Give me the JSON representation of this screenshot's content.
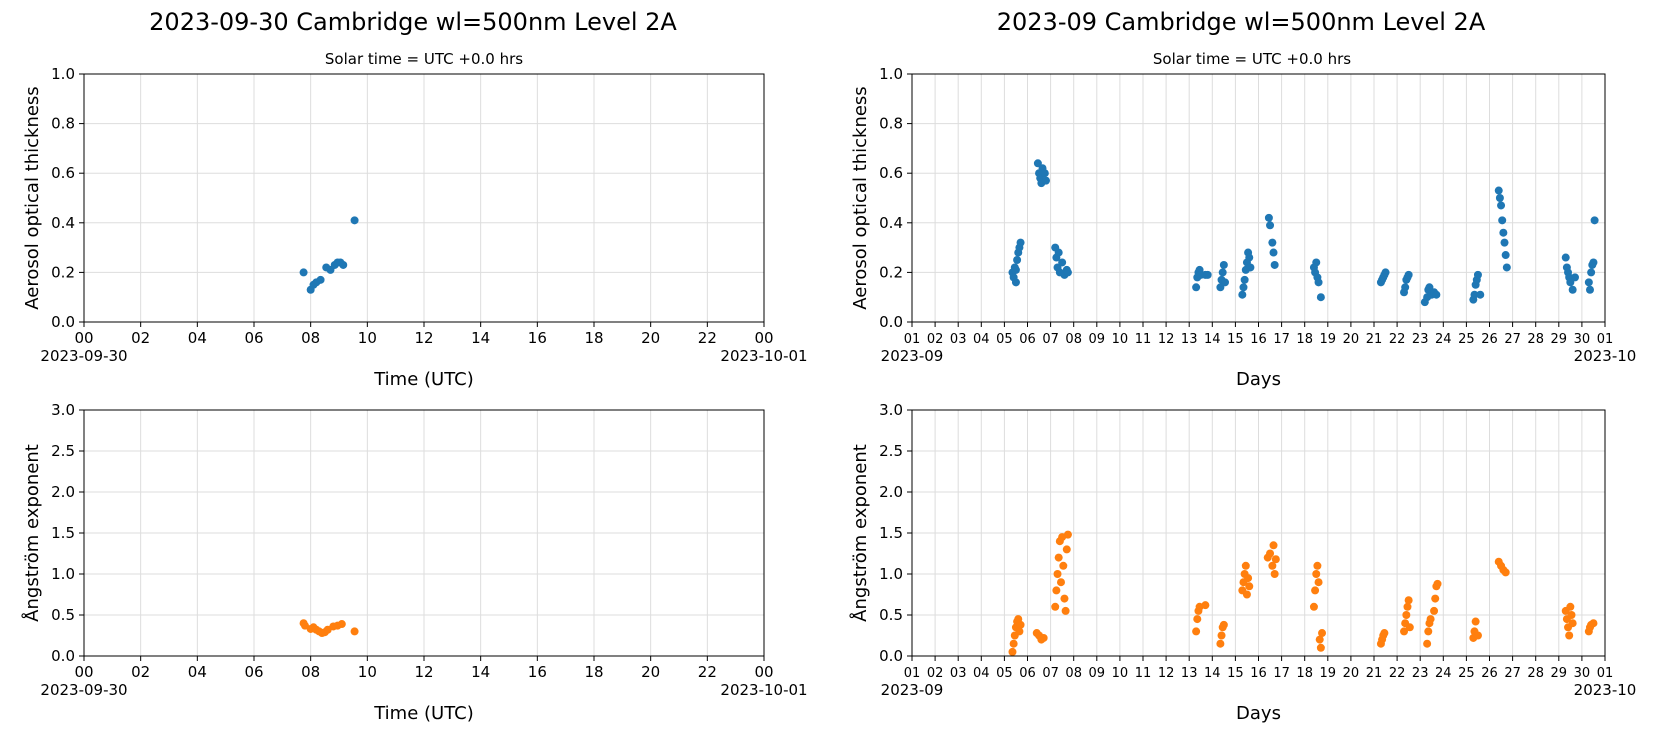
{
  "figure": {
    "left_title": "2023-09-30  Cambridge  wl=500nm  Level 2A",
    "right_title": "2023-09  Cambridge  wl=500nm  Level 2A",
    "left_subtitle": "Solar time = UTC +0.0 hrs",
    "right_subtitle": "Solar time = UTC +0.0 hrs"
  },
  "colors": {
    "aot": "#1f77b4",
    "angstrom": "#ff7f0e",
    "grid": "#dddddd"
  },
  "chart_data": [
    {
      "id": "day-aot",
      "type": "scatter",
      "xlabel": "Time (UTC)",
      "ylabel": "Aerosol optical thickness",
      "xlim": [
        0,
        24
      ],
      "ylim": [
        0,
        1.0
      ],
      "xticks": [
        "00",
        "02",
        "04",
        "06",
        "08",
        "10",
        "12",
        "14",
        "16",
        "18",
        "20",
        "22",
        "00"
      ],
      "yticks": [
        "0.0",
        "0.2",
        "0.4",
        "0.6",
        "0.8",
        "1.0"
      ],
      "x_date_start": "2023-09-30",
      "x_date_end": "2023-10-01",
      "grid": true,
      "series": [
        {
          "color": "#1f77b4",
          "points": [
            [
              7.75,
              0.2
            ],
            [
              8.0,
              0.13
            ],
            [
              8.1,
              0.15
            ],
            [
              8.2,
              0.16
            ],
            [
              8.35,
              0.17
            ],
            [
              8.55,
              0.22
            ],
            [
              8.7,
              0.21
            ],
            [
              8.85,
              0.23
            ],
            [
              8.95,
              0.24
            ],
            [
              9.05,
              0.24
            ],
            [
              9.15,
              0.23
            ],
            [
              9.55,
              0.41
            ]
          ]
        }
      ]
    },
    {
      "id": "month-aot",
      "type": "scatter",
      "xlabel": "Days",
      "ylabel": "Aerosol optical thickness",
      "xlim": [
        1,
        31
      ],
      "ylim": [
        0,
        1.0
      ],
      "xticks": [
        "01",
        "02",
        "03",
        "04",
        "05",
        "06",
        "07",
        "08",
        "09",
        "10",
        "11",
        "12",
        "13",
        "14",
        "15",
        "16",
        "17",
        "18",
        "19",
        "20",
        "21",
        "22",
        "23",
        "24",
        "25",
        "26",
        "27",
        "28",
        "29",
        "30",
        "01"
      ],
      "yticks": [
        "0.0",
        "0.2",
        "0.4",
        "0.6",
        "0.8",
        "1.0"
      ],
      "x_date_start": "2023-09",
      "x_date_end": "2023-10",
      "grid": true,
      "series": [
        {
          "color": "#1f77b4",
          "points": [
            [
              5.35,
              0.2
            ],
            [
              5.4,
              0.18
            ],
            [
              5.45,
              0.22
            ],
            [
              5.5,
              0.16
            ],
            [
              5.55,
              0.25
            ],
            [
              5.6,
              0.28
            ],
            [
              5.65,
              0.3
            ],
            [
              5.7,
              0.32
            ],
            [
              5.5,
              0.21
            ],
            [
              6.45,
              0.64
            ],
            [
              6.5,
              0.6
            ],
            [
              6.55,
              0.58
            ],
            [
              6.6,
              0.56
            ],
            [
              6.65,
              0.62
            ],
            [
              6.75,
              0.6
            ],
            [
              6.8,
              0.57
            ],
            [
              7.2,
              0.3
            ],
            [
              7.25,
              0.26
            ],
            [
              7.3,
              0.22
            ],
            [
              7.35,
              0.28
            ],
            [
              7.4,
              0.2
            ],
            [
              7.5,
              0.24
            ],
            [
              7.6,
              0.19
            ],
            [
              7.7,
              0.21
            ],
            [
              7.75,
              0.2
            ],
            [
              13.3,
              0.14
            ],
            [
              13.35,
              0.18
            ],
            [
              13.4,
              0.2
            ],
            [
              13.45,
              0.21
            ],
            [
              13.5,
              0.19
            ],
            [
              13.7,
              0.19
            ],
            [
              13.8,
              0.19
            ],
            [
              14.35,
              0.14
            ],
            [
              14.4,
              0.17
            ],
            [
              14.45,
              0.2
            ],
            [
              14.5,
              0.23
            ],
            [
              14.55,
              0.16
            ],
            [
              15.3,
              0.11
            ],
            [
              15.35,
              0.14
            ],
            [
              15.4,
              0.17
            ],
            [
              15.45,
              0.21
            ],
            [
              15.5,
              0.24
            ],
            [
              15.55,
              0.28
            ],
            [
              15.6,
              0.26
            ],
            [
              15.65,
              0.22
            ],
            [
              16.45,
              0.42
            ],
            [
              16.5,
              0.39
            ],
            [
              16.6,
              0.32
            ],
            [
              16.65,
              0.28
            ],
            [
              16.7,
              0.23
            ],
            [
              18.4,
              0.22
            ],
            [
              18.45,
              0.2
            ],
            [
              18.5,
              0.24
            ],
            [
              18.55,
              0.18
            ],
            [
              18.6,
              0.16
            ],
            [
              18.7,
              0.1
            ],
            [
              21.3,
              0.16
            ],
            [
              21.35,
              0.17
            ],
            [
              21.4,
              0.18
            ],
            [
              21.45,
              0.19
            ],
            [
              21.5,
              0.2
            ],
            [
              22.3,
              0.12
            ],
            [
              22.35,
              0.14
            ],
            [
              22.4,
              0.17
            ],
            [
              22.45,
              0.18
            ],
            [
              22.5,
              0.19
            ],
            [
              23.2,
              0.08
            ],
            [
              23.3,
              0.1
            ],
            [
              23.35,
              0.13
            ],
            [
              23.4,
              0.14
            ],
            [
              23.5,
              0.11
            ],
            [
              23.6,
              0.12
            ],
            [
              23.7,
              0.11
            ],
            [
              25.3,
              0.09
            ],
            [
              25.35,
              0.11
            ],
            [
              25.4,
              0.15
            ],
            [
              25.45,
              0.17
            ],
            [
              25.5,
              0.19
            ],
            [
              25.6,
              0.11
            ],
            [
              26.4,
              0.53
            ],
            [
              26.45,
              0.5
            ],
            [
              26.5,
              0.47
            ],
            [
              26.55,
              0.41
            ],
            [
              26.6,
              0.36
            ],
            [
              26.65,
              0.32
            ],
            [
              26.7,
              0.27
            ],
            [
              26.75,
              0.22
            ],
            [
              29.3,
              0.26
            ],
            [
              29.35,
              0.22
            ],
            [
              29.4,
              0.2
            ],
            [
              29.45,
              0.18
            ],
            [
              29.5,
              0.16
            ],
            [
              29.6,
              0.13
            ],
            [
              29.7,
              0.18
            ],
            [
              30.3,
              0.16
            ],
            [
              30.35,
              0.13
            ],
            [
              30.4,
              0.2
            ],
            [
              30.45,
              0.23
            ],
            [
              30.5,
              0.24
            ],
            [
              30.55,
              0.41
            ]
          ]
        }
      ]
    },
    {
      "id": "day-angstrom",
      "type": "scatter",
      "xlabel": "Time (UTC)",
      "ylabel": "Ångström exponent",
      "xlim": [
        0,
        24
      ],
      "ylim": [
        0,
        3.0
      ],
      "xticks": [
        "00",
        "02",
        "04",
        "06",
        "08",
        "10",
        "12",
        "14",
        "16",
        "18",
        "20",
        "22",
        "00"
      ],
      "yticks": [
        "0.0",
        "0.5",
        "1.0",
        "1.5",
        "2.0",
        "2.5",
        "3.0"
      ],
      "x_date_start": "2023-09-30",
      "x_date_end": "2023-10-01",
      "grid": true,
      "series": [
        {
          "color": "#ff7f0e",
          "points": [
            [
              7.75,
              0.4
            ],
            [
              7.8,
              0.37
            ],
            [
              8.0,
              0.33
            ],
            [
              8.1,
              0.35
            ],
            [
              8.2,
              0.32
            ],
            [
              8.3,
              0.3
            ],
            [
              8.4,
              0.28
            ],
            [
              8.5,
              0.29
            ],
            [
              8.6,
              0.32
            ],
            [
              8.8,
              0.36
            ],
            [
              8.95,
              0.37
            ],
            [
              9.1,
              0.39
            ],
            [
              9.55,
              0.3
            ]
          ]
        }
      ]
    },
    {
      "id": "month-angstrom",
      "type": "scatter",
      "xlabel": "Days",
      "ylabel": "Ångström exponent",
      "xlim": [
        1,
        31
      ],
      "ylim": [
        0,
        3.0
      ],
      "xticks": [
        "01",
        "02",
        "03",
        "04",
        "05",
        "06",
        "07",
        "08",
        "09",
        "10",
        "11",
        "12",
        "13",
        "14",
        "15",
        "16",
        "17",
        "18",
        "19",
        "20",
        "21",
        "22",
        "23",
        "24",
        "25",
        "26",
        "27",
        "28",
        "29",
        "30",
        "01"
      ],
      "yticks": [
        "0.0",
        "0.5",
        "1.0",
        "1.5",
        "2.0",
        "2.5",
        "3.0"
      ],
      "x_date_start": "2023-09",
      "x_date_end": "2023-10",
      "grid": true,
      "series": [
        {
          "color": "#ff7f0e",
          "points": [
            [
              5.35,
              0.05
            ],
            [
              5.4,
              0.15
            ],
            [
              5.45,
              0.25
            ],
            [
              5.5,
              0.35
            ],
            [
              5.55,
              0.42
            ],
            [
              5.6,
              0.45
            ],
            [
              5.65,
              0.3
            ],
            [
              5.7,
              0.38
            ],
            [
              6.4,
              0.28
            ],
            [
              6.5,
              0.25
            ],
            [
              6.6,
              0.2
            ],
            [
              6.7,
              0.22
            ],
            [
              7.2,
              0.6
            ],
            [
              7.25,
              0.8
            ],
            [
              7.3,
              1.0
            ],
            [
              7.35,
              1.2
            ],
            [
              7.4,
              1.4
            ],
            [
              7.45,
              0.9
            ],
            [
              7.5,
              1.45
            ],
            [
              7.55,
              1.1
            ],
            [
              7.6,
              0.7
            ],
            [
              7.65,
              0.55
            ],
            [
              7.7,
              1.3
            ],
            [
              7.75,
              1.48
            ],
            [
              13.3,
              0.3
            ],
            [
              13.35,
              0.45
            ],
            [
              13.4,
              0.55
            ],
            [
              13.45,
              0.6
            ],
            [
              13.7,
              0.62
            ],
            [
              14.35,
              0.15
            ],
            [
              14.4,
              0.25
            ],
            [
              14.45,
              0.35
            ],
            [
              14.5,
              0.38
            ],
            [
              15.3,
              0.8
            ],
            [
              15.35,
              0.9
            ],
            [
              15.4,
              1.0
            ],
            [
              15.45,
              1.1
            ],
            [
              15.5,
              0.75
            ],
            [
              15.55,
              0.95
            ],
            [
              15.6,
              0.85
            ],
            [
              16.4,
              1.2
            ],
            [
              16.5,
              1.25
            ],
            [
              16.6,
              1.1
            ],
            [
              16.65,
              1.35
            ],
            [
              16.7,
              1.0
            ],
            [
              16.75,
              1.18
            ],
            [
              18.4,
              0.6
            ],
            [
              18.45,
              0.8
            ],
            [
              18.5,
              1.0
            ],
            [
              18.55,
              1.1
            ],
            [
              18.6,
              0.9
            ],
            [
              18.65,
              0.2
            ],
            [
              18.7,
              0.1
            ],
            [
              18.75,
              0.28
            ],
            [
              21.3,
              0.15
            ],
            [
              21.35,
              0.2
            ],
            [
              21.4,
              0.25
            ],
            [
              21.45,
              0.28
            ],
            [
              22.3,
              0.3
            ],
            [
              22.35,
              0.4
            ],
            [
              22.4,
              0.5
            ],
            [
              22.45,
              0.6
            ],
            [
              22.5,
              0.68
            ],
            [
              22.55,
              0.35
            ],
            [
              23.3,
              0.15
            ],
            [
              23.35,
              0.3
            ],
            [
              23.4,
              0.4
            ],
            [
              23.45,
              0.45
            ],
            [
              23.6,
              0.55
            ],
            [
              23.65,
              0.7
            ],
            [
              23.7,
              0.85
            ],
            [
              23.75,
              0.88
            ],
            [
              25.3,
              0.22
            ],
            [
              25.35,
              0.3
            ],
            [
              25.4,
              0.42
            ],
            [
              25.5,
              0.25
            ],
            [
              26.4,
              1.15
            ],
            [
              26.5,
              1.1
            ],
            [
              26.6,
              1.05
            ],
            [
              26.7,
              1.02
            ],
            [
              29.3,
              0.55
            ],
            [
              29.35,
              0.45
            ],
            [
              29.4,
              0.35
            ],
            [
              29.45,
              0.25
            ],
            [
              29.5,
              0.6
            ],
            [
              29.55,
              0.5
            ],
            [
              29.6,
              0.4
            ],
            [
              30.3,
              0.3
            ],
            [
              30.35,
              0.35
            ],
            [
              30.4,
              0.38
            ],
            [
              30.5,
              0.4
            ]
          ]
        }
      ]
    }
  ]
}
